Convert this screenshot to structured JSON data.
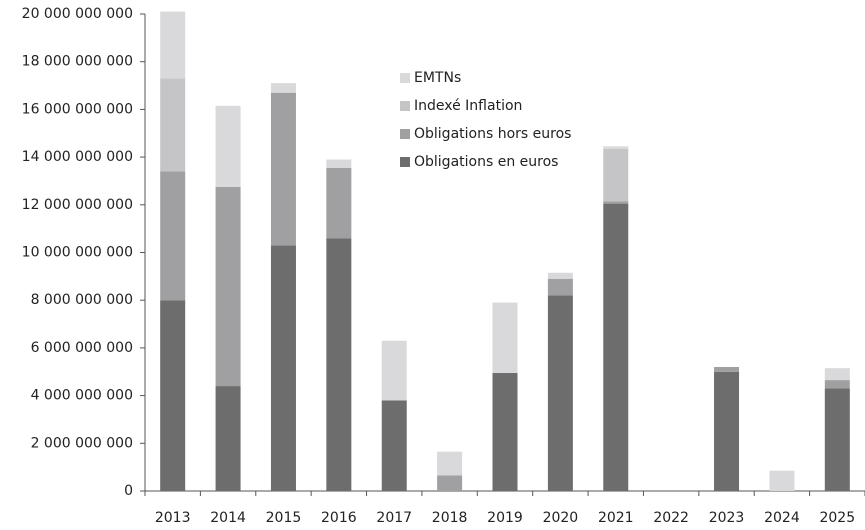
{
  "chart_data": {
    "type": "stacked_bar",
    "categories": [
      "2013",
      "2014",
      "2015",
      "2016",
      "2017",
      "2018",
      "2019",
      "2020",
      "2021",
      "2022",
      "2023",
      "2024",
      "2025"
    ],
    "series": [
      {
        "name": "Obligations en euros",
        "color": "#6d6d6d",
        "values": [
          8000000000,
          4400000000,
          10300000000,
          10600000000,
          3800000000,
          0,
          4950000000,
          8200000000,
          12050000000,
          0,
          5000000000,
          0,
          4300000000
        ]
      },
      {
        "name": "Obligations hors euros",
        "color": "#a0a0a2",
        "values": [
          5400000000,
          8350000000,
          6400000000,
          2950000000,
          0,
          650000000,
          0,
          700000000,
          100000000,
          0,
          200000000,
          0,
          350000000
        ]
      },
      {
        "name": "Indexé Inflation",
        "color": "#c5c5c7",
        "values": [
          3900000000,
          0,
          0,
          0,
          0,
          0,
          0,
          0,
          2200000000,
          0,
          0,
          0,
          0
        ]
      },
      {
        "name": "EMTNs",
        "color": "#d9d9db",
        "values": [
          2800000000,
          3400000000,
          400000000,
          350000000,
          2500000000,
          1000000000,
          2950000000,
          250000000,
          100000000,
          0,
          0,
          850000000,
          500000000
        ]
      }
    ],
    "ylim": [
      0,
      20000000000
    ],
    "yticks": [
      0,
      {
        "value": 2000000000,
        "label": "2 000 000 000"
      },
      {
        "value": 4000000000,
        "label": "4 000 000 000"
      },
      {
        "value": 6000000000,
        "label": "6 000 000 000"
      },
      {
        "value": 8000000000,
        "label": "8 000 000 000"
      },
      {
        "value": 10000000000,
        "label": "10 000 000 000"
      },
      {
        "value": 12000000000,
        "label": "12 000 000 000"
      },
      {
        "value": 14000000000,
        "label": "14 000 000 000"
      },
      {
        "value": 16000000000,
        "label": "16 000 000 000"
      },
      {
        "value": 18000000000,
        "label": "18 000 000 000"
      },
      {
        "value": 20000000000,
        "label": "20 000 000 000"
      }
    ],
    "grid": false
  }
}
